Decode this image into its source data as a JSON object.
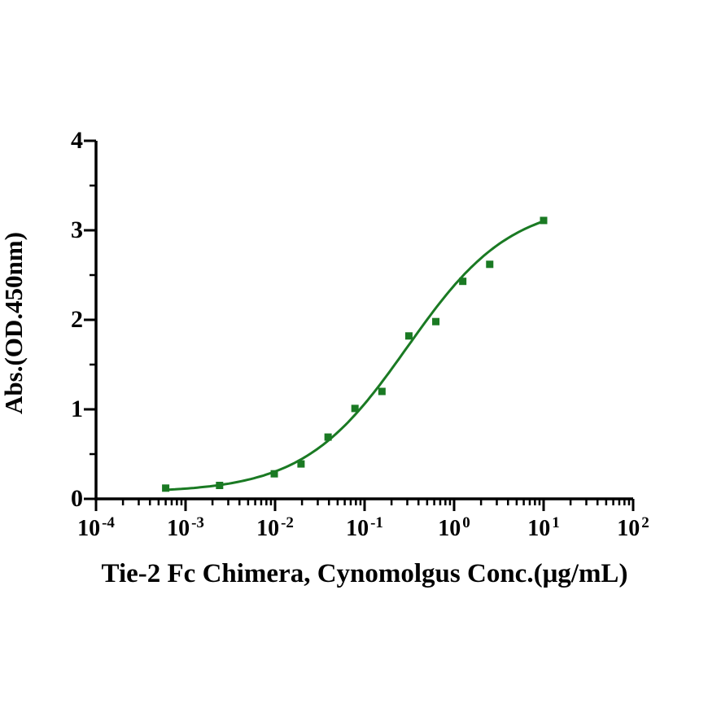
{
  "style": {
    "background": "#ffffff",
    "axis_color": "#000000",
    "text_color": "#000000",
    "curve_color": "#1a7a23"
  },
  "chart_data": {
    "type": "scatter",
    "title": "",
    "xlabel": "Tie-2 Fc Chimera, Cynomolgus Conc.(μg/mL)",
    "ylabel": "Abs.(OD.450nm)",
    "x_scale": "log10",
    "xlim": [
      0.0001,
      100
    ],
    "ylim": [
      0,
      4
    ],
    "grid": false,
    "legend": "none",
    "x_major_ticks": [
      {
        "base": "10",
        "exp": "-4"
      },
      {
        "base": "10",
        "exp": "-3"
      },
      {
        "base": "10",
        "exp": "-2"
      },
      {
        "base": "10",
        "exp": "-1"
      },
      {
        "base": "10",
        "exp": "0"
      },
      {
        "base": "10",
        "exp": "1"
      },
      {
        "base": "10",
        "exp": "2"
      }
    ],
    "x_major_exponents": [
      -4,
      -3,
      -2,
      -1,
      0,
      1,
      2
    ],
    "x_minor_multiples": [
      2,
      3,
      4,
      5,
      6,
      7,
      8,
      9
    ],
    "y_major_ticks": [
      "0",
      "1",
      "2",
      "3",
      "4"
    ],
    "y_major_values": [
      0,
      1,
      2,
      3,
      4
    ],
    "y_minor_values": [
      0.5,
      1.5,
      2.5,
      3.5
    ],
    "series": [
      {
        "name": "Tie-2 Fc Chimera, Cynomolgus",
        "marker": "square",
        "marker_size_px": 9,
        "color": "#1a7a23",
        "x": [
          0.0006,
          0.0024,
          0.0098,
          0.0195,
          0.0391,
          0.0781,
          0.1563,
          0.3125,
          0.625,
          1.25,
          2.5,
          10
        ],
        "y": [
          0.12,
          0.15,
          0.28,
          0.39,
          0.69,
          1.01,
          1.2,
          1.82,
          1.98,
          2.43,
          2.62,
          3.11
        ]
      }
    ],
    "fit_curve": {
      "model": "4PL",
      "bottom": 0.07,
      "top": 3.32,
      "ec50": 0.3,
      "hill": 0.75,
      "x_start": 0.0006,
      "x_end": 10
    }
  }
}
